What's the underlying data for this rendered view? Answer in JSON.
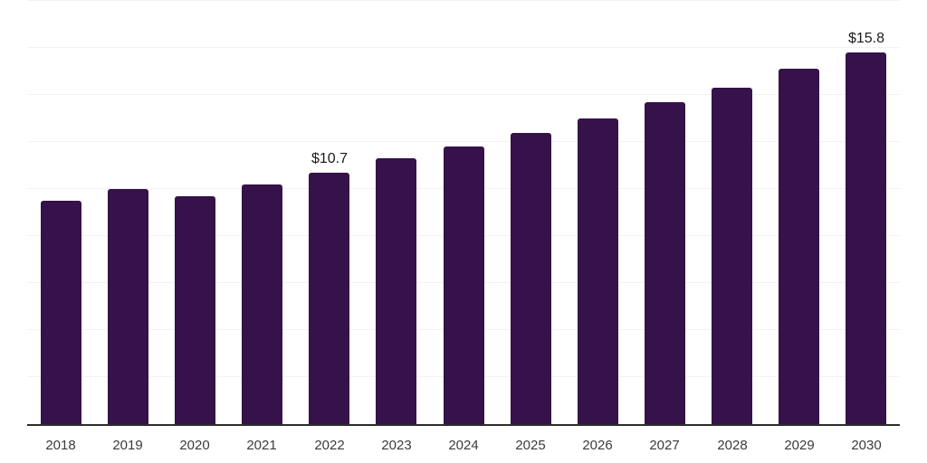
{
  "chart_data": {
    "type": "bar",
    "title": "",
    "categories": [
      "2018",
      "2019",
      "2020",
      "2021",
      "2022",
      "2023",
      "2024",
      "2025",
      "2026",
      "2027",
      "2028",
      "2029",
      "2030"
    ],
    "values": [
      9.5,
      10.0,
      9.7,
      10.2,
      10.7,
      11.3,
      11.8,
      12.4,
      13.0,
      13.7,
      14.3,
      15.1,
      15.8
    ],
    "labeled_points": [
      {
        "category_index": 4,
        "label": "$10.7"
      },
      {
        "category_index": 12,
        "label": "$15.8"
      }
    ],
    "value_prefix": "$",
    "xlabel": "",
    "ylabel": "",
    "ylim": [
      0,
      18
    ],
    "gridline_step": 2,
    "grid": "horizontal",
    "legend": "none",
    "colors": {
      "bar": "#351249",
      "gridline": "#f2f2f2",
      "axis_line": "#2d2d2d",
      "x_label": "#3b3b3b",
      "data_label": "#1a1a1a",
      "background": "#ffffff"
    }
  }
}
